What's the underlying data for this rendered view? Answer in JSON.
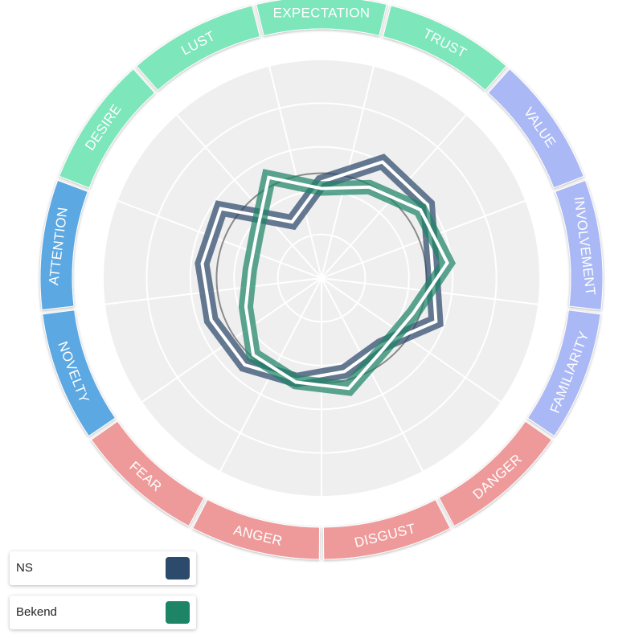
{
  "chart_data": {
    "type": "radar",
    "categories": [
      "EXPECTATION",
      "TRUST",
      "VALUE",
      "INVOLVEMENT",
      "FAMILIARITY",
      "DANGER",
      "DISGUST",
      "ANGER",
      "FEAR",
      "NOVELTY",
      "ATTENTION",
      "DESIRE",
      "LUST"
    ],
    "category_groups": [
      {
        "categories": [
          "EXPECTATION",
          "TRUST",
          "DESIRE",
          "LUST"
        ],
        "color": "#7de6bb"
      },
      {
        "categories": [
          "VALUE",
          "INVOLVEMENT",
          "FAMILIARITY"
        ],
        "color": "#aab8f6"
      },
      {
        "categories": [
          "DANGER",
          "DISGUST",
          "ANGER",
          "FEAR"
        ],
        "color": "#ef9a9a"
      },
      {
        "categories": [
          "NOVELTY",
          "ATTENTION"
        ],
        "color": "#5ca8e2"
      }
    ],
    "rlim": [
      0,
      5
    ],
    "reference_ring": 2.4,
    "series": [
      {
        "name": "NS",
        "color": "#2c4a6b",
        "values": [
          2.2,
          3.0,
          2.95,
          2.55,
          2.8,
          2.05,
          2.2,
          2.4,
          2.65,
          2.7,
          2.75,
          2.8,
          1.45
        ]
      },
      {
        "name": "Bekend",
        "color": "#1e8466",
        "values": [
          2.05,
          2.35,
          2.75,
          2.9,
          2.25,
          2.15,
          2.6,
          2.45,
          2.35,
          1.85,
          1.65,
          1.8,
          2.6
        ]
      }
    ],
    "grid": true,
    "legend_position": "bottom-left"
  }
}
